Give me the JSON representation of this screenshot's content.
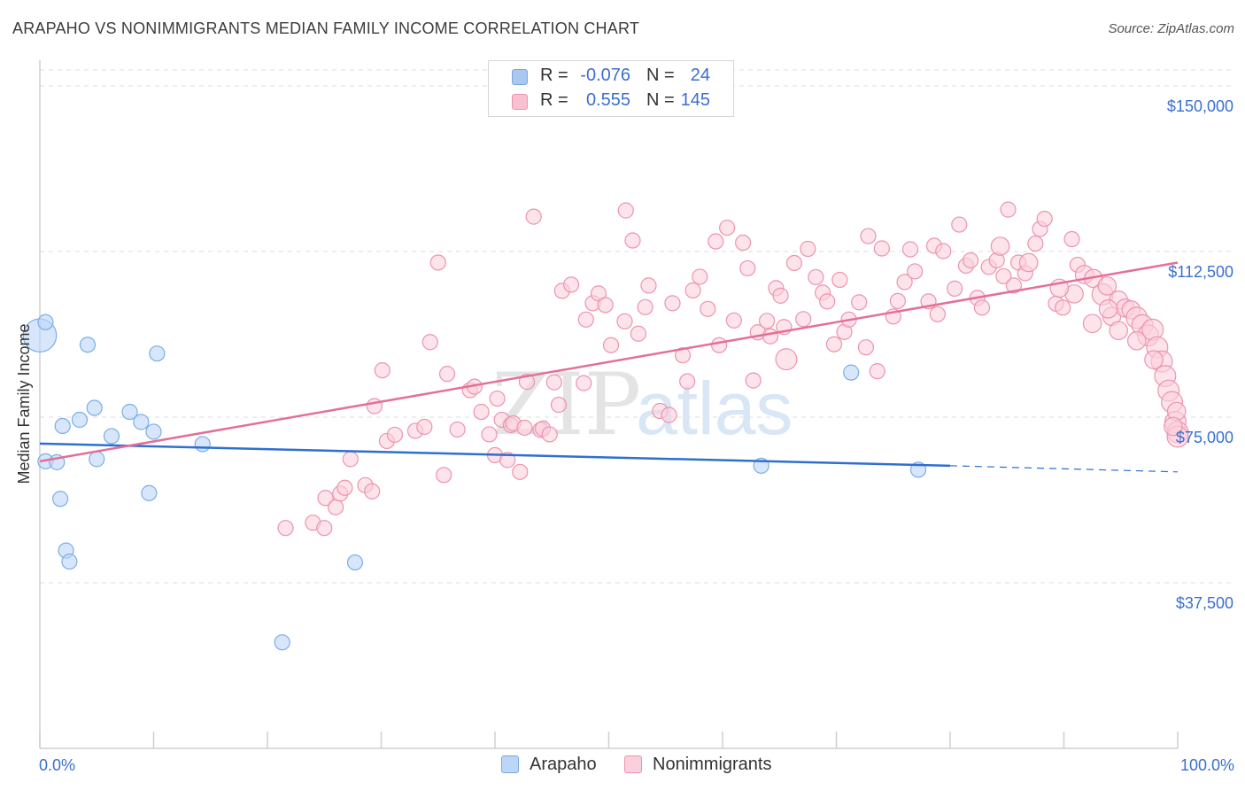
{
  "title": "ARAPAHO VS NONIMMIGRANTS MEDIAN FAMILY INCOME CORRELATION CHART",
  "source": "Source: ZipAtlas.com",
  "watermark": {
    "zip": "ZIP",
    "atlas": "atlas"
  },
  "legend": {
    "rows": [
      {
        "r_label": "R =",
        "r_value": "-0.076",
        "n_label": "N =",
        "n_value": "24",
        "color": "#a8c8f0",
        "border": "#7aa6e0"
      },
      {
        "r_label": "R =",
        "r_value": "0.555",
        "n_label": "N =",
        "n_value": "145",
        "color": "#f8c0d0",
        "border": "#eb94b0"
      }
    ]
  },
  "bottom_legend": [
    {
      "label": "Arapaho",
      "color": "#bcd6f6",
      "border": "#7aa6e0"
    },
    {
      "label": "Nonimmigrants",
      "color": "#fbd0dc",
      "border": "#eb94b0"
    }
  ],
  "chart_data": {
    "type": "scatter",
    "xlabel": "",
    "ylabel": "Median Family Income",
    "xlim": [
      0,
      100
    ],
    "ylim": [
      0,
      155000
    ],
    "x_tick_labels": {
      "left": "0.0%",
      "right": "100.0%"
    },
    "y_ticks": [
      37500,
      75000,
      112500,
      150000
    ],
    "y_tick_labels": [
      "$37,500",
      "$75,000",
      "$112,500",
      "$150,000"
    ],
    "grid": true,
    "series": [
      {
        "name": "Arapaho",
        "color": "#7aaee6",
        "fill": "#bcd6f6",
        "trend": {
          "x1": 0,
          "y1": 69000,
          "x2": 80,
          "y2": 64000,
          "dash_to_x": 100,
          "dash_to_y": 62600,
          "color": "#2f6fd0"
        },
        "points": [
          [
            0,
            93500,
            2.2
          ],
          [
            0.5,
            96500,
            1
          ],
          [
            0.5,
            65000,
            1
          ],
          [
            1.5,
            64800,
            1
          ],
          [
            1.8,
            56500,
            1
          ],
          [
            2,
            73000,
            1
          ],
          [
            2.3,
            44800,
            1
          ],
          [
            2.6,
            42300,
            1
          ],
          [
            3.5,
            74400,
            1
          ],
          [
            4.2,
            91400,
            1
          ],
          [
            4.8,
            77100,
            1
          ],
          [
            5,
            65500,
            1
          ],
          [
            6.3,
            70700,
            1
          ],
          [
            7.9,
            76200,
            1
          ],
          [
            8.9,
            73900,
            1
          ],
          [
            9.6,
            57800,
            1
          ],
          [
            10,
            71700,
            1
          ],
          [
            10.3,
            89400,
            1
          ],
          [
            14.3,
            68900,
            1
          ],
          [
            21.3,
            24000,
            1
          ],
          [
            27.7,
            42100,
            1
          ],
          [
            63.4,
            64000,
            1
          ],
          [
            71.3,
            85100,
            1
          ],
          [
            77.2,
            63100,
            1
          ]
        ]
      },
      {
        "name": "Nonimmigrants",
        "color": "#ec94b0",
        "fill": "#fbd0dc",
        "trend": {
          "x1": 0,
          "y1": 65000,
          "x2": 100,
          "y2": 110000,
          "color": "#e46f99"
        },
        "points": [
          [
            21.6,
            49900,
            1
          ],
          [
            24,
            51100,
            1
          ],
          [
            25,
            49900,
            1
          ],
          [
            25.1,
            56700,
            1
          ],
          [
            26,
            54600,
            1
          ],
          [
            26.4,
            57700,
            1
          ],
          [
            26.8,
            59000,
            1
          ],
          [
            27.3,
            65500,
            1
          ],
          [
            28.6,
            59600,
            1
          ],
          [
            29.2,
            58200,
            1
          ],
          [
            29.4,
            77500,
            1
          ],
          [
            30.1,
            85600,
            1
          ],
          [
            30.5,
            69600,
            1
          ],
          [
            31.2,
            71000,
            1
          ],
          [
            33,
            71900,
            1
          ],
          [
            33.8,
            72800,
            1
          ],
          [
            34.3,
            92000,
            1
          ],
          [
            35,
            110000,
            1
          ],
          [
            35.5,
            61900,
            1
          ],
          [
            35.8,
            84800,
            1
          ],
          [
            36.7,
            72200,
            1
          ],
          [
            37.8,
            81100,
            1
          ],
          [
            38.2,
            81900,
            1
          ],
          [
            38.8,
            76200,
            1
          ],
          [
            39.5,
            71100,
            1
          ],
          [
            40,
            66400,
            1
          ],
          [
            40.2,
            79200,
            1
          ],
          [
            40.6,
            74400,
            1
          ],
          [
            41.1,
            65300,
            1
          ],
          [
            41.4,
            73200,
            1
          ],
          [
            41.6,
            73600,
            1
          ],
          [
            42.2,
            62600,
            1
          ],
          [
            42.6,
            72600,
            1
          ],
          [
            42.8,
            83000,
            1
          ],
          [
            43.4,
            120400,
            1
          ],
          [
            44,
            72100,
            1
          ],
          [
            44.2,
            72400,
            1
          ],
          [
            44.8,
            71100,
            1
          ],
          [
            45.2,
            82900,
            1
          ],
          [
            45.6,
            77800,
            1
          ],
          [
            45.9,
            103600,
            1
          ],
          [
            46.7,
            105000,
            1
          ],
          [
            47.8,
            82700,
            1
          ],
          [
            48,
            97100,
            1
          ],
          [
            48.6,
            100800,
            1
          ],
          [
            49.1,
            103000,
            1
          ],
          [
            49.7,
            100400,
            1
          ],
          [
            50.2,
            91300,
            1
          ],
          [
            51.4,
            96700,
            1
          ],
          [
            51.5,
            121800,
            1
          ],
          [
            52.1,
            115000,
            1
          ],
          [
            52.6,
            93900,
            1
          ],
          [
            53.2,
            99900,
            1
          ],
          [
            53.5,
            104800,
            1
          ],
          [
            54.5,
            76400,
            1
          ],
          [
            55.3,
            75500,
            1
          ],
          [
            55.6,
            100800,
            1
          ],
          [
            56.5,
            89000,
            1
          ],
          [
            56.9,
            83100,
            1
          ],
          [
            57.4,
            103700,
            1
          ],
          [
            58,
            106800,
            1
          ],
          [
            58.7,
            99500,
            1
          ],
          [
            59.4,
            114800,
            1
          ],
          [
            59.7,
            91300,
            1
          ],
          [
            60.4,
            117900,
            1
          ],
          [
            61,
            96900,
            1
          ],
          [
            61.8,
            114500,
            1
          ],
          [
            62.2,
            108700,
            1
          ],
          [
            62.7,
            83300,
            1
          ],
          [
            63.1,
            94200,
            1
          ],
          [
            63.9,
            96800,
            1
          ],
          [
            64.2,
            93300,
            1
          ],
          [
            64.7,
            104200,
            1
          ],
          [
            65.1,
            102500,
            1
          ],
          [
            65.4,
            95400,
            1
          ],
          [
            65.6,
            88100,
            1.4
          ],
          [
            66.3,
            109900,
            1
          ],
          [
            67.1,
            97200,
            1
          ],
          [
            67.5,
            113100,
            1
          ],
          [
            68.2,
            106700,
            1
          ],
          [
            68.8,
            103200,
            1
          ],
          [
            69.2,
            101200,
            1
          ],
          [
            69.8,
            91500,
            1
          ],
          [
            70.3,
            106100,
            1
          ],
          [
            70.7,
            94300,
            1
          ],
          [
            71.1,
            97100,
            1
          ],
          [
            72,
            101000,
            1
          ],
          [
            72.6,
            90800,
            1
          ],
          [
            72.8,
            116000,
            1
          ],
          [
            73.6,
            85400,
            1
          ],
          [
            74,
            113200,
            1
          ],
          [
            75,
            97800,
            1
          ],
          [
            75.4,
            101300,
            1
          ],
          [
            76,
            105600,
            1
          ],
          [
            76.5,
            113000,
            1
          ],
          [
            76.9,
            108000,
            1
          ],
          [
            78.1,
            101200,
            1
          ],
          [
            78.6,
            113800,
            1
          ],
          [
            78.9,
            98300,
            1
          ],
          [
            79.4,
            112600,
            1
          ],
          [
            80.4,
            104100,
            1
          ],
          [
            80.8,
            118600,
            1
          ],
          [
            81.4,
            109300,
            1
          ],
          [
            81.8,
            110500,
            1
          ],
          [
            82.4,
            102000,
            1
          ],
          [
            82.8,
            99800,
            1
          ],
          [
            83.4,
            109000,
            1
          ],
          [
            84.1,
            110500,
            1
          ],
          [
            84.7,
            106900,
            1
          ],
          [
            85.1,
            122000,
            1
          ],
          [
            85.6,
            104800,
            1
          ],
          [
            86,
            110000,
            1
          ],
          [
            86.6,
            107600,
            1
          ],
          [
            87.5,
            114300,
            1
          ],
          [
            87.9,
            117600,
            1
          ],
          [
            88.3,
            119900,
            1
          ],
          [
            89.3,
            100700,
            1
          ],
          [
            89.9,
            99800,
            1
          ],
          [
            90.7,
            115300,
            1
          ],
          [
            91.2,
            109500,
            1
          ],
          [
            91.8,
            107300,
            1.2
          ],
          [
            92.6,
            106400,
            1.2
          ],
          [
            93.4,
            102800,
            1.4
          ],
          [
            93.8,
            104700,
            1.2
          ],
          [
            94.2,
            97800,
            1.2
          ],
          [
            94.8,
            101500,
            1.2
          ],
          [
            95.4,
            99700,
            1.2
          ],
          [
            95.9,
            99300,
            1.2
          ],
          [
            96.4,
            97500,
            1.4
          ],
          [
            96.9,
            95800,
            1.4
          ],
          [
            97.4,
            93500,
            1.4
          ],
          [
            97.8,
            94800,
            1.4
          ],
          [
            98.2,
            90800,
            1.4
          ],
          [
            98.6,
            87600,
            1.4
          ],
          [
            98.9,
            84300,
            1.4
          ],
          [
            99.2,
            81000,
            1.4
          ],
          [
            99.5,
            78400,
            1.4
          ],
          [
            99.8,
            73900,
            1.4
          ],
          [
            100,
            71600,
            1.4
          ],
          [
            100,
            70600,
            1.4
          ],
          [
            99.9,
            76300,
            1.2
          ],
          [
            99.6,
            72900,
            1.2
          ],
          [
            97.9,
            88000,
            1.2
          ],
          [
            96.4,
            92300,
            1.2
          ],
          [
            94.8,
            94600,
            1.2
          ],
          [
            93.9,
            99500,
            1.2
          ],
          [
            92.5,
            96200,
            1.2
          ],
          [
            90.9,
            102900,
            1.2
          ],
          [
            89.6,
            104200,
            1.2
          ],
          [
            86.9,
            110000,
            1.2
          ],
          [
            84.4,
            113700,
            1.2
          ]
        ]
      }
    ]
  }
}
